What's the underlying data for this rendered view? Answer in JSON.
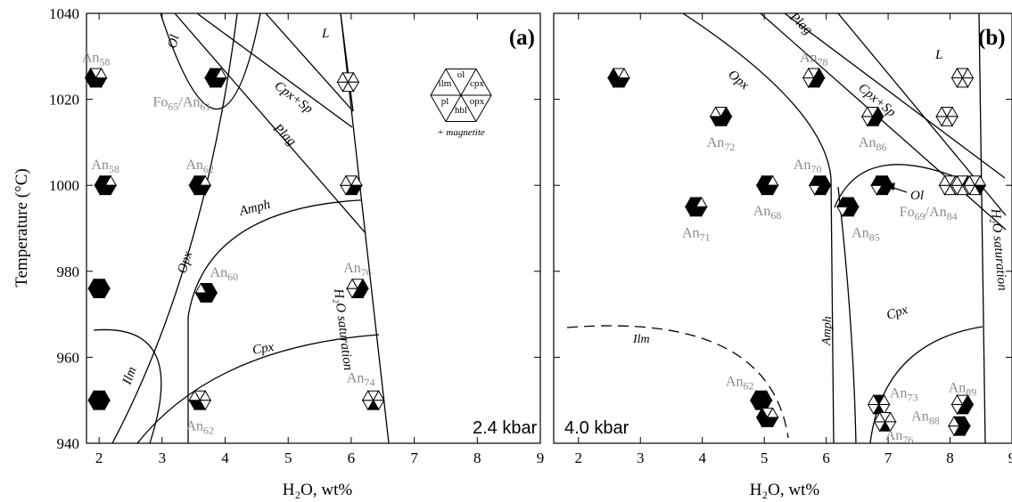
{
  "chart_data": [
    {
      "type": "scatter",
      "panel_label": "(a)",
      "pressure_label": "2.4 kbar",
      "xlabel": "H₂O, wt%",
      "ylabel": "Temperature (°C)",
      "xlim": [
        1.8,
        9
      ],
      "ylim": [
        940,
        1040
      ],
      "xticks": [
        2,
        3,
        4,
        5,
        6,
        7,
        8,
        9
      ],
      "yticks": [
        940,
        960,
        980,
        1000,
        1020,
        1040
      ],
      "legend": {
        "sectors": [
          "ol",
          "cpx",
          "opx",
          "hbl",
          "pl",
          "ilm"
        ],
        "note": "+ magnetite"
      },
      "field_labels": [
        "Ol",
        "L",
        "Cpx+Sp",
        "Plag",
        "Amph",
        "Opx",
        "Cpx",
        "Ilm",
        "H₂O saturation"
      ],
      "points": [
        {
          "x": 1.95,
          "y": 1025,
          "phases": [
            "opx",
            "hbl",
            "pl",
            "ilm"
          ],
          "note": "An58",
          "note2": ""
        },
        {
          "x": 3.85,
          "y": 1025,
          "phases": [
            "ol",
            "opx",
            "hbl",
            "pl",
            "ilm"
          ],
          "note": "Fo65/An61",
          "note2": ""
        },
        {
          "x": 5.95,
          "y": 1024,
          "phases": [],
          "note": "",
          "note2": ""
        },
        {
          "x": 2.1,
          "y": 1000,
          "phases": [
            "ol",
            "opx",
            "hbl",
            "pl",
            "ilm"
          ],
          "note": "An58",
          "note2": ""
        },
        {
          "x": 3.6,
          "y": 1000,
          "phases": [
            "ol",
            "opx",
            "hbl",
            "pl",
            "ilm"
          ],
          "note": "An62",
          "note2": ""
        },
        {
          "x": 6.0,
          "y": 1000,
          "phases": [
            "opx",
            "hbl"
          ],
          "note": "",
          "note2": ""
        },
        {
          "x": 2.0,
          "y": 976,
          "phases": [
            "ol",
            "cpx",
            "opx",
            "hbl",
            "pl",
            "ilm"
          ],
          "note": "",
          "note2": ""
        },
        {
          "x": 3.7,
          "y": 975,
          "phases": [
            "ol",
            "cpx",
            "opx",
            "hbl",
            "pl"
          ],
          "note": "An60",
          "note2": ""
        },
        {
          "x": 6.1,
          "y": 976,
          "phases": [
            "cpx",
            "opx",
            "hbl"
          ],
          "note": "An76",
          "note2": ""
        },
        {
          "x": 2.0,
          "y": 950,
          "phases": [
            "ol",
            "cpx",
            "opx",
            "hbl",
            "pl",
            "ilm"
          ],
          "note": "",
          "note2": ""
        },
        {
          "x": 3.6,
          "y": 950,
          "phases": [
            "hbl",
            "pl"
          ],
          "note": "An62",
          "note2": ""
        },
        {
          "x": 6.35,
          "y": 950,
          "phases": [
            "hbl"
          ],
          "note": "An74",
          "note2": ""
        }
      ]
    },
    {
      "type": "scatter",
      "panel_label": "(b)",
      "pressure_label": "4.0 kbar",
      "xlabel": "H₂O, wt%",
      "ylabel": "",
      "xlim": [
        1.6,
        9
      ],
      "ylim": [
        940,
        1040
      ],
      "xticks": [
        2,
        3,
        4,
        5,
        6,
        7,
        8,
        9
      ],
      "yticks": [
        940,
        960,
        980,
        1000,
        1020,
        1040
      ],
      "legend": null,
      "field_labels": [
        "Plag",
        "L",
        "Opx",
        "Cpx+Sp",
        "Ol",
        "Amph",
        "Cpx",
        "Ilm",
        "H₂O saturation"
      ],
      "points": [
        {
          "x": 2.65,
          "y": 1025,
          "phases": [
            "opx",
            "hbl",
            "pl",
            "ilm"
          ],
          "note": "",
          "note2": ""
        },
        {
          "x": 5.8,
          "y": 1025,
          "phases": [
            "cpx",
            "opx",
            "hbl"
          ],
          "note": "An78",
          "note2": ""
        },
        {
          "x": 8.2,
          "y": 1025,
          "phases": [],
          "note": "",
          "note2": ""
        },
        {
          "x": 4.3,
          "y": 1016,
          "phases": [
            "cpx",
            "opx",
            "hbl",
            "pl"
          ],
          "note": "An72",
          "note2": ""
        },
        {
          "x": 6.75,
          "y": 1016,
          "phases": [
            "cpx",
            "opx",
            "hbl"
          ],
          "note": "An86",
          "note2": ""
        },
        {
          "x": 7.95,
          "y": 1016,
          "phases": [],
          "note": "",
          "note2": ""
        },
        {
          "x": 5.05,
          "y": 1000,
          "phases": [
            "ol",
            "opx",
            "hbl",
            "pl",
            "ilm"
          ],
          "note": "An68",
          "note2": ""
        },
        {
          "x": 5.9,
          "y": 1000,
          "phases": [
            "ol",
            "cpx",
            "opx",
            "hbl",
            "ilm"
          ],
          "note": "An70",
          "note2": ""
        },
        {
          "x": 6.9,
          "y": 1000,
          "phases": [
            "ol",
            "cpx",
            "opx",
            "hbl",
            "ilm"
          ],
          "note": "Fo69/An84",
          "note2": ""
        },
        {
          "x": 8.0,
          "y": 1000,
          "phases": [],
          "note": "",
          "note2": ""
        },
        {
          "x": 8.2,
          "y": 1000,
          "phases": [
            "cpx"
          ],
          "note": "",
          "note2": ""
        },
        {
          "x": 8.4,
          "y": 1000,
          "phases": [
            "opx"
          ],
          "note": "",
          "note2": ""
        },
        {
          "x": 3.9,
          "y": 995,
          "phases": [
            "ol",
            "opx",
            "hbl",
            "pl",
            "ilm"
          ],
          "note": "An71",
          "note2": ""
        },
        {
          "x": 6.35,
          "y": 995,
          "phases": [
            "ol",
            "cpx",
            "opx",
            "hbl",
            "ilm"
          ],
          "note": "An85",
          "note2": ""
        },
        {
          "x": 4.95,
          "y": 950,
          "phases": [
            "ol",
            "cpx",
            "opx",
            "hbl",
            "pl",
            "ilm"
          ],
          "note": "An62",
          "note2": ""
        },
        {
          "x": 5.05,
          "y": 946,
          "phases": [
            "opx",
            "hbl",
            "pl",
            "ilm"
          ],
          "note": "",
          "note2": ""
        },
        {
          "x": 6.85,
          "y": 949,
          "phases": [
            "ol",
            "hbl"
          ],
          "note": "An73",
          "note2": ""
        },
        {
          "x": 6.95,
          "y": 945,
          "phases": [
            "hbl"
          ],
          "note": "An76",
          "note2": ""
        },
        {
          "x": 8.2,
          "y": 949,
          "phases": [
            "cpx",
            "opx",
            "hbl"
          ],
          "note": "An89",
          "note2": ""
        },
        {
          "x": 8.15,
          "y": 944,
          "phases": [
            "ol",
            "cpx",
            "opx",
            "hbl"
          ],
          "note": "An88",
          "note2": ""
        }
      ]
    }
  ]
}
